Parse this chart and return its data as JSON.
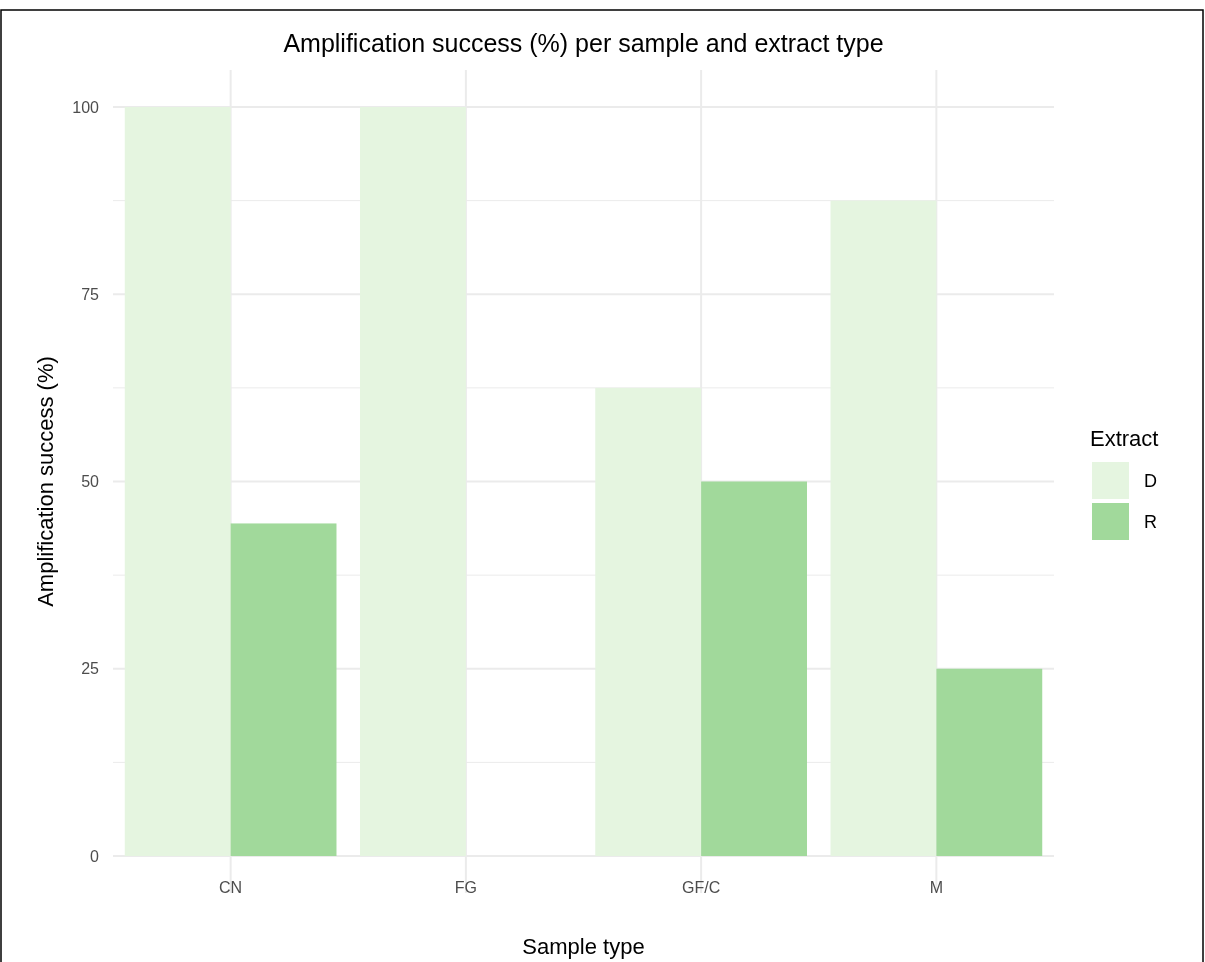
{
  "chart_data": {
    "type": "bar",
    "title": "Amplification success (%) per sample and extract type",
    "xlabel": "Sample type",
    "ylabel": "Amplification success (%)",
    "legend_title": "Extract",
    "categories": [
      "CN",
      "FG",
      "GF/C",
      "M"
    ],
    "series": [
      {
        "name": "D",
        "color": "#e5f5e0",
        "values": [
          100,
          100,
          62.5,
          87.5
        ]
      },
      {
        "name": "R",
        "color": "#a1d99b",
        "values": [
          44.4,
          0,
          50,
          25
        ]
      }
    ],
    "ylim": [
      0,
      100
    ],
    "yticks": [
      0,
      25,
      50,
      75,
      100
    ],
    "grid": true,
    "legend": "right"
  }
}
